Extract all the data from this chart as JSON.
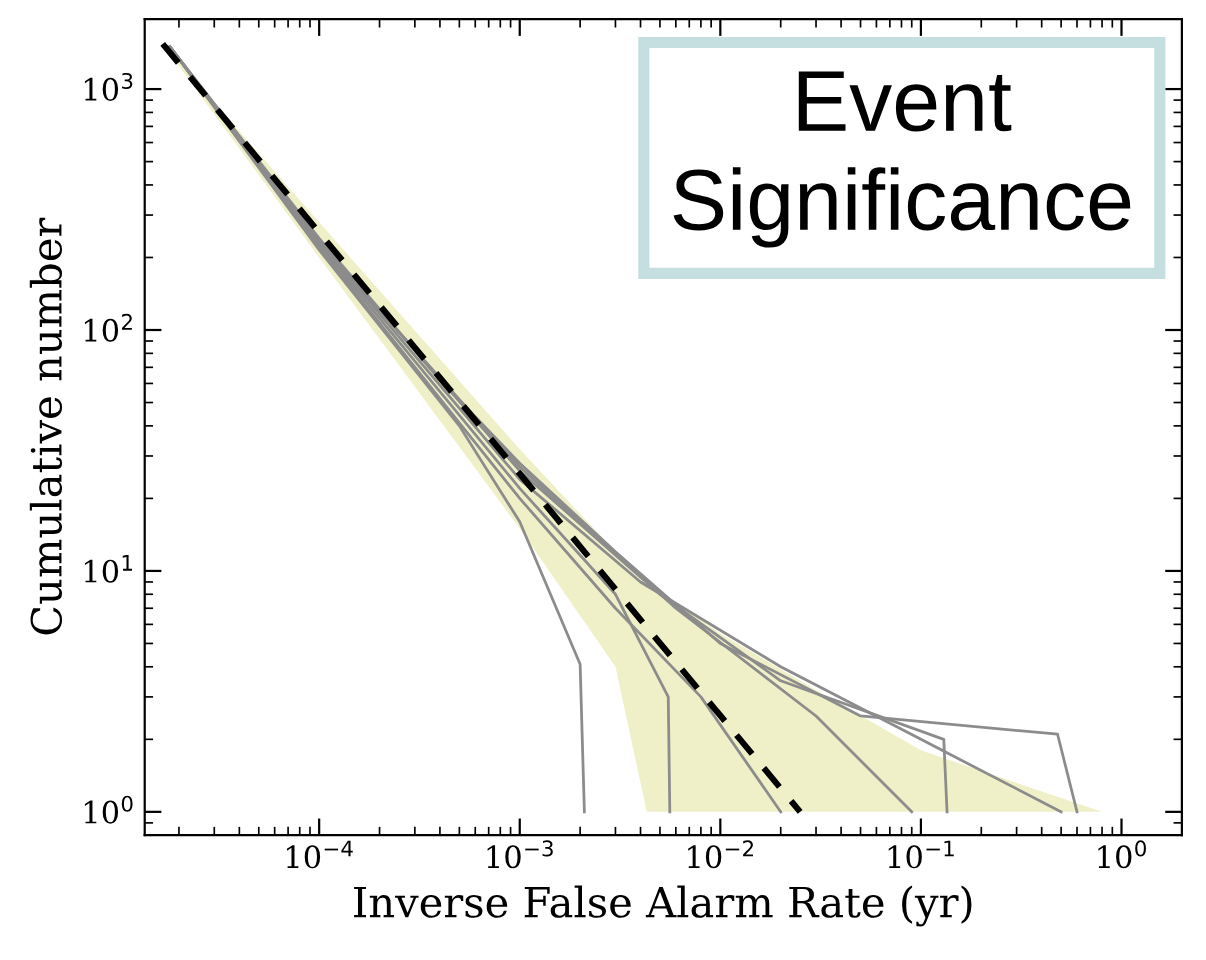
{
  "chart_data": {
    "type": "line",
    "xlabel": "Inverse False Alarm Rate (yr)",
    "ylabel": "Cumulative number",
    "log": "xy",
    "xlim": [
      1.35e-05,
      2
    ],
    "ylim": [
      0.8,
      1950
    ],
    "xticks": [
      {
        "value": 0.0001,
        "label": "10$^{−4}$"
      },
      {
        "value": 0.001,
        "label": "10$^{−3}$"
      },
      {
        "value": 0.01,
        "label": "10$^{−2}$"
      },
      {
        "value": 0.1,
        "label": "10$^{−1}$"
      },
      {
        "value": 1,
        "label": "10$^{0}$"
      }
    ],
    "yticks": [
      {
        "value": 1,
        "label": "10$^{0}$"
      },
      {
        "value": 10,
        "label": "10$^{1}$"
      },
      {
        "value": 100,
        "label": "10$^{2}$"
      },
      {
        "value": 1000,
        "label": "10$^{3}$"
      }
    ],
    "grid": false,
    "legend": false,
    "annotations": [
      "Event\nSignificance"
    ],
    "series": [
      {
        "type": "line",
        "color": "#8c8c8c",
        "x": [
          1.8e-05,
          0.0001,
          0.0004,
          0.001,
          0.003,
          0.01,
          0.05,
          0.48,
          0.6
        ],
        "values": [
          1500,
          240,
          62,
          28,
          12,
          5,
          2.5,
          2.1,
          1
        ]
      },
      {
        "type": "line",
        "color": "#8c8c8c",
        "x": [
          1.8e-05,
          0.0001,
          0.0005,
          0.001,
          0.002,
          0.0021
        ],
        "values": [
          1500,
          215,
          40,
          16,
          4.1,
          1
        ]
      },
      {
        "type": "line",
        "color": "#8c8c8c",
        "x": [
          1.8e-05,
          0.0001,
          0.001,
          0.003,
          0.0055,
          0.0056
        ],
        "values": [
          1500,
          225,
          22,
          8,
          3,
          1
        ]
      },
      {
        "type": "line",
        "color": "#8c8c8c",
        "x": [
          1.8e-05,
          0.0001,
          0.001,
          0.005,
          0.02,
          0.13,
          0.135
        ],
        "values": [
          1500,
          235,
          26,
          8,
          3.5,
          2,
          1
        ]
      },
      {
        "type": "line",
        "color": "#8c8c8c",
        "x": [
          1.8e-05,
          0.0001,
          0.001,
          0.004,
          0.02,
          0.1,
          0.5
        ],
        "values": [
          1500,
          230,
          24,
          9,
          4,
          2,
          1
        ]
      },
      {
        "type": "line",
        "color": "#8c8c8c",
        "x": [
          1.8e-05,
          0.0001,
          0.001,
          0.003,
          0.008,
          0.02
        ],
        "values": [
          1500,
          220,
          20,
          7,
          3,
          1
        ]
      },
      {
        "type": "line",
        "color": "#8c8c8c",
        "x": [
          1.8e-05,
          0.0001,
          0.001,
          0.006,
          0.03,
          0.09
        ],
        "values": [
          1500,
          230,
          27,
          7,
          2.5,
          1
        ]
      },
      {
        "color": "#000000",
        "line_style": "dashed",
        "x": [
          1.66e-05,
          0.0001,
          0.001,
          0.003,
          0.0043,
          0.01,
          0.025,
          0.1,
          0.8
        ],
        "values": [
          1540,
          254,
          25.3,
          8.4,
          5.83,
          2.51,
          1,
          null,
          null
        ],
        "lower": [
          1540,
          200,
          15,
          4,
          1,
          1,
          1,
          1,
          1
        ],
        "upper": [
          1540,
          280,
          32,
          12,
          9,
          5.5,
          3.5,
          1.8,
          1
        ]
      }
    ]
  }
}
